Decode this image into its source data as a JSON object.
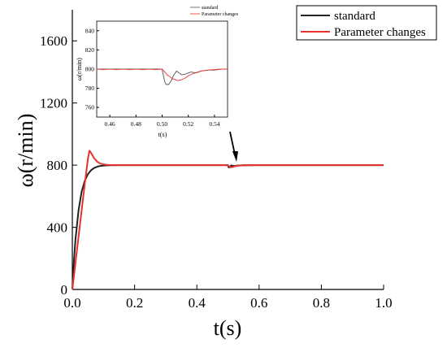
{
  "chart_data": [
    {
      "type": "line",
      "title": "",
      "xlabel": "t(s)",
      "ylabel": "ω(r/min)",
      "xlim": [
        0,
        1.0
      ],
      "ylim": [
        0,
        1800
      ],
      "xticks": [
        "0.0",
        "0.2",
        "0.4",
        "0.6",
        "0.8",
        "1.0"
      ],
      "yticks": [
        "0",
        "400",
        "800",
        "1200",
        "1600"
      ],
      "legend_position": "top-right",
      "grid": false,
      "series": [
        {
          "name": "standard",
          "color": "#222222",
          "x": [
            0,
            0.005,
            0.01,
            0.02,
            0.03,
            0.04,
            0.05,
            0.06,
            0.07,
            0.08,
            0.09,
            0.1,
            0.12,
            0.15,
            0.2,
            0.3,
            0.4,
            0.49,
            0.5,
            0.501,
            0.503,
            0.506,
            0.51,
            0.52,
            0.53,
            0.55,
            0.6,
            0.8,
            1.0
          ],
          "y": [
            0,
            180,
            320,
            510,
            630,
            700,
            742,
            767,
            782,
            790,
            795,
            797,
            799,
            800,
            800,
            800,
            800,
            800,
            800,
            790,
            785,
            789,
            798,
            795,
            797,
            799,
            800,
            800,
            800
          ]
        },
        {
          "name": "Parameter changes",
          "color": "#e8312f",
          "x": [
            0,
            0.01,
            0.02,
            0.03,
            0.04,
            0.05,
            0.055,
            0.06,
            0.07,
            0.08,
            0.09,
            0.1,
            0.11,
            0.12,
            0.14,
            0.17,
            0.2,
            0.3,
            0.4,
            0.49,
            0.5,
            0.502,
            0.505,
            0.51,
            0.515,
            0.52,
            0.53,
            0.55,
            0.6,
            0.8,
            1.0
          ],
          "y": [
            0,
            170,
            340,
            510,
            680,
            840,
            893,
            880,
            845,
            822,
            810,
            805,
            802,
            801,
            800,
            800,
            800,
            800,
            800,
            800,
            800,
            795,
            789,
            786,
            788,
            792,
            796,
            799,
            800,
            800,
            800
          ]
        }
      ]
    },
    {
      "type": "line",
      "title": "",
      "xlabel": "t(s)",
      "ylabel": "ω(r/min)",
      "xlim": [
        0.45,
        0.55
      ],
      "ylim": [
        750,
        850
      ],
      "xticks": [
        "0.46",
        "0.48",
        "0.50",
        "0.52",
        "0.54"
      ],
      "yticks": [
        "760",
        "780",
        "800",
        "820",
        "840"
      ],
      "legend_position": "top-center",
      "grid": false,
      "series": [
        {
          "name": "standard",
          "color": "#555555",
          "x": [
            0.45,
            0.47,
            0.49,
            0.5,
            0.501,
            0.502,
            0.503,
            0.505,
            0.507,
            0.509,
            0.511,
            0.513,
            0.515,
            0.518,
            0.522,
            0.526,
            0.53,
            0.535,
            0.54,
            0.545,
            0.55
          ],
          "y": [
            800,
            800,
            800,
            800,
            793,
            787,
            784,
            784,
            788,
            794,
            798,
            796,
            794,
            795,
            797,
            796,
            798,
            799,
            799,
            800,
            800
          ]
        },
        {
          "name": "Parameter changes",
          "color": "#e8312f",
          "x": [
            0.45,
            0.455,
            0.46,
            0.465,
            0.47,
            0.475,
            0.48,
            0.485,
            0.49,
            0.495,
            0.5,
            0.502,
            0.504,
            0.506,
            0.508,
            0.51,
            0.512,
            0.515,
            0.518,
            0.52,
            0.523,
            0.526,
            0.53,
            0.535,
            0.54,
            0.545,
            0.55
          ],
          "y": [
            800,
            799.5,
            800,
            799.5,
            800,
            799.5,
            800,
            799.5,
            800,
            799.5,
            800,
            797,
            794,
            792,
            790,
            789,
            788,
            789,
            791,
            793,
            795,
            796.5,
            798,
            799,
            799.5,
            800,
            800
          ]
        }
      ]
    }
  ]
}
